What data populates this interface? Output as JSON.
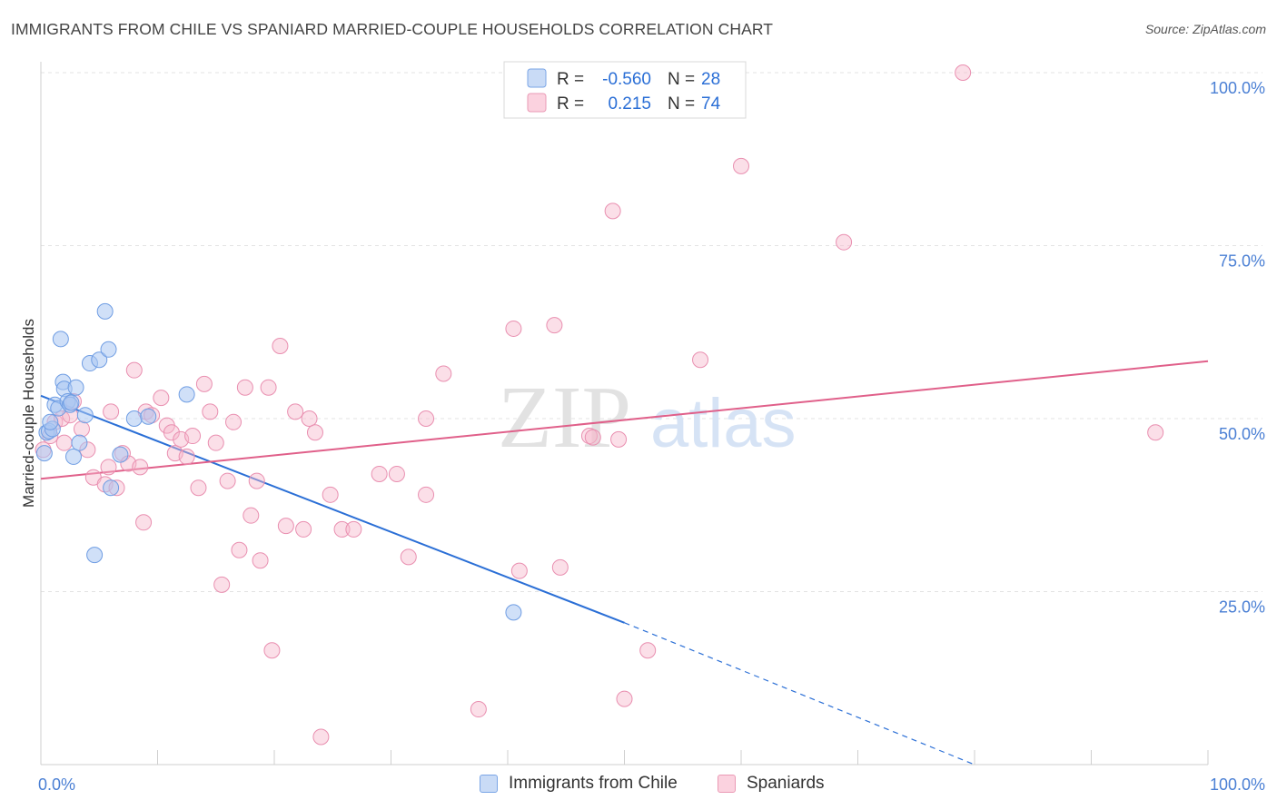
{
  "title": "IMMIGRANTS FROM CHILE VS SPANIARD MARRIED-COUPLE HOUSEHOLDS CORRELATION CHART",
  "source": "Source: ZipAtlas.com",
  "watermark": {
    "zip": "ZIP",
    "atlas": "atlas"
  },
  "colors": {
    "blue": "#2b6fd6",
    "blue_fill": "#a9c6f2",
    "pink": "#e0608a",
    "pink_fill": "#f6b9cd",
    "tick": "#4a7fd4"
  },
  "legend": {
    "r_label": "R =",
    "n_label": "N =",
    "rows": [
      {
        "r": "-0.560",
        "n": "28"
      },
      {
        "r": "0.215",
        "n": "74"
      }
    ]
  },
  "chart_data": {
    "type": "scatter",
    "xlabel": "",
    "ylabel": "Married-couple Households",
    "xlim": [
      0,
      100
    ],
    "ylim": [
      0,
      100
    ],
    "x_tick_labels": [
      "0.0%",
      "100.0%"
    ],
    "y_tick_labels": [
      "25.0%",
      "50.0%",
      "75.0%",
      "100.0%"
    ],
    "y_ticks": [
      25,
      50,
      75,
      100
    ],
    "grid": true,
    "legend_placement": "top-center",
    "series": [
      {
        "name": "Immigrants from Chile",
        "color": "#2b6fd6",
        "trend": {
          "x0": 0,
          "y0": 53.3,
          "x1": 50,
          "y1": 20.5,
          "dash_to_x": 80,
          "dash_to_y": 0
        },
        "points": [
          [
            0.3,
            45.0
          ],
          [
            0.5,
            48.0
          ],
          [
            0.7,
            48.2
          ],
          [
            1.0,
            48.5
          ],
          [
            1.2,
            52.0
          ],
          [
            1.5,
            51.5
          ],
          [
            1.7,
            61.5
          ],
          [
            1.9,
            55.3
          ],
          [
            2.0,
            54.3
          ],
          [
            2.3,
            52.5
          ],
          [
            2.5,
            52.0
          ],
          [
            2.6,
            52.3
          ],
          [
            2.8,
            44.5
          ],
          [
            3.0,
            54.5
          ],
          [
            3.3,
            46.5
          ],
          [
            3.8,
            50.5
          ],
          [
            4.2,
            58.0
          ],
          [
            4.6,
            30.3
          ],
          [
            5.0,
            58.5
          ],
          [
            5.5,
            65.5
          ],
          [
            5.8,
            60.0
          ],
          [
            6.0,
            40.0
          ],
          [
            6.8,
            44.8
          ],
          [
            8.0,
            50.0
          ],
          [
            9.2,
            50.3
          ],
          [
            12.5,
            53.5
          ],
          [
            40.5,
            22.0
          ],
          [
            0.8,
            49.5
          ]
        ]
      },
      {
        "name": "Spaniards",
        "color": "#e0608a",
        "trend": {
          "x0": 0,
          "y0": 41.3,
          "x1": 100,
          "y1": 58.3
        },
        "points": [
          [
            0.2,
            45.5
          ],
          [
            0.8,
            47.5
          ],
          [
            1.2,
            49.5
          ],
          [
            1.8,
            50.0
          ],
          [
            2.5,
            50.5
          ],
          [
            2.8,
            52.5
          ],
          [
            3.5,
            48.5
          ],
          [
            4.0,
            45.5
          ],
          [
            4.5,
            41.5
          ],
          [
            5.5,
            40.5
          ],
          [
            5.8,
            43.0
          ],
          [
            6.5,
            40.0
          ],
          [
            7.0,
            45.0
          ],
          [
            7.5,
            43.5
          ],
          [
            8.0,
            57.0
          ],
          [
            8.5,
            43.0
          ],
          [
            8.8,
            35.0
          ],
          [
            9.0,
            51.0
          ],
          [
            9.5,
            50.5
          ],
          [
            10.3,
            53.0
          ],
          [
            10.8,
            49.0
          ],
          [
            11.2,
            48.0
          ],
          [
            11.5,
            45.0
          ],
          [
            12.0,
            47.0
          ],
          [
            12.5,
            44.5
          ],
          [
            13.0,
            47.5
          ],
          [
            13.5,
            40.0
          ],
          [
            14.0,
            55.0
          ],
          [
            14.5,
            51.0
          ],
          [
            15.0,
            46.5
          ],
          [
            15.5,
            26.0
          ],
          [
            16.0,
            41.0
          ],
          [
            16.5,
            49.5
          ],
          [
            17.0,
            31.0
          ],
          [
            17.5,
            54.5
          ],
          [
            18.0,
            36.0
          ],
          [
            18.5,
            41.0
          ],
          [
            18.8,
            29.5
          ],
          [
            19.5,
            54.5
          ],
          [
            19.8,
            16.5
          ],
          [
            20.5,
            60.5
          ],
          [
            21.0,
            34.5
          ],
          [
            21.8,
            51.0
          ],
          [
            22.5,
            34.0
          ],
          [
            23.0,
            50.0
          ],
          [
            23.5,
            48.0
          ],
          [
            24.0,
            4.0
          ],
          [
            24.8,
            39.0
          ],
          [
            25.8,
            34.0
          ],
          [
            26.8,
            34.0
          ],
          [
            29.0,
            42.0
          ],
          [
            30.5,
            42.0
          ],
          [
            31.5,
            30.0
          ],
          [
            33.0,
            50.0
          ],
          [
            33.0,
            39.0
          ],
          [
            34.5,
            56.5
          ],
          [
            37.5,
            8.0
          ],
          [
            40.5,
            63.0
          ],
          [
            41.0,
            28.0
          ],
          [
            44.0,
            63.5
          ],
          [
            44.5,
            28.5
          ],
          [
            47.0,
            47.5
          ],
          [
            47.3,
            47.3
          ],
          [
            49.0,
            80.0
          ],
          [
            49.5,
            47.0
          ],
          [
            50.0,
            9.5
          ],
          [
            52.0,
            16.5
          ],
          [
            56.5,
            58.5
          ],
          [
            60.0,
            86.5
          ],
          [
            68.8,
            75.5
          ],
          [
            79.0,
            100.0
          ],
          [
            95.5,
            48.0
          ],
          [
            2.0,
            46.5
          ],
          [
            6.0,
            51.0
          ]
        ]
      }
    ]
  }
}
